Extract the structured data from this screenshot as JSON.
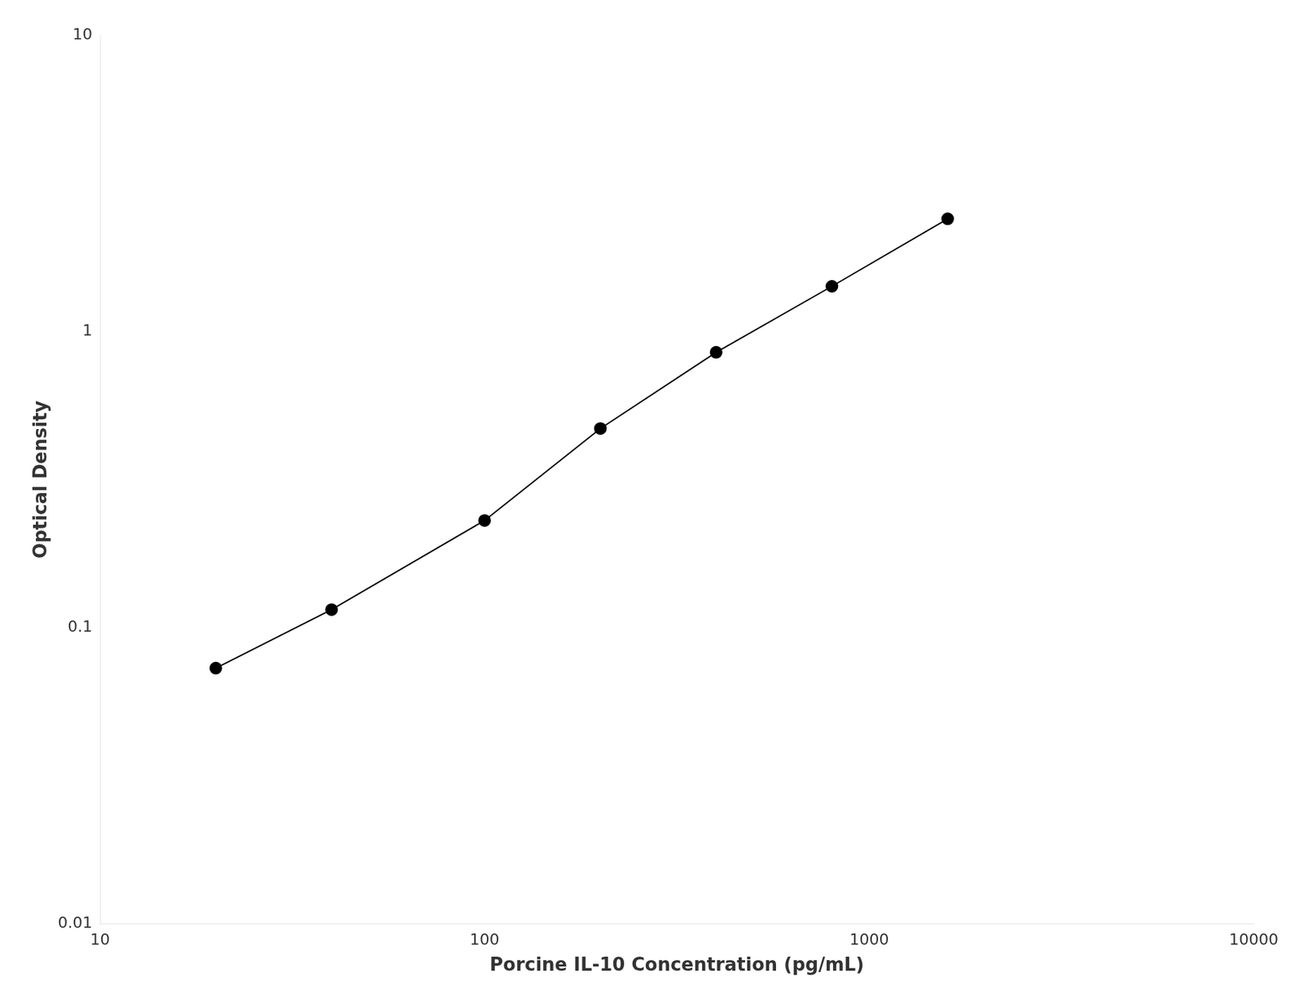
{
  "chart_data": {
    "type": "line",
    "x": [
      20,
      40,
      100,
      200,
      400,
      800,
      1600
    ],
    "values": [
      0.073,
      0.115,
      0.23,
      0.47,
      0.85,
      1.42,
      2.4
    ],
    "xlabel": "Porcine IL-10 Concentration (pg/mL)",
    "ylabel": "Optical Density",
    "xlim": [
      10,
      10000
    ],
    "ylim": [
      0.01,
      10
    ],
    "xticks": [
      10,
      100,
      1000,
      10000
    ],
    "yticks": [
      0.01,
      0.1,
      1,
      10
    ],
    "log": true,
    "grid": false,
    "color": "#000000",
    "marker": "circle",
    "line_style": "solid"
  }
}
